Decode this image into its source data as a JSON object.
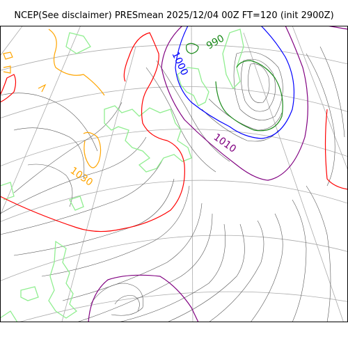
{
  "title": "NCEP(See disclaimer) PRESmean 2025/12/04 00Z FT=120 (init 2900Z)",
  "contour_labels": [
    {
      "text": "990",
      "color": "#1a8a1a"
    },
    {
      "text": "1000",
      "color": "#0000ff"
    },
    {
      "text": "1010",
      "color": "#800080"
    },
    {
      "text": "1030",
      "color": "#ffa500"
    }
  ],
  "colors": {
    "coast": "#90ee90",
    "grid": "#aaaaaa",
    "isobar": "#555555",
    "c990": "#1a8a1a",
    "c1000": "#0000ff",
    "c1010": "#800080",
    "c1020": "#ff0000",
    "c1030": "#ffa500"
  }
}
